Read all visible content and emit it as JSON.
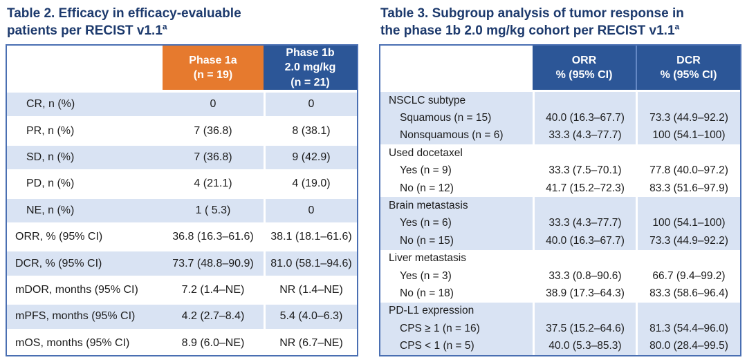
{
  "colors": {
    "title_navy": "#1D3A6D",
    "header_orange": "#E67A2E",
    "header_blue": "#2C5697",
    "row_shade_blue": "#D9E3F3",
    "table_border_blue": "#4A6FB2",
    "body_text": "#1B1B1B"
  },
  "table2": {
    "title_main": "Table 2. Efficacy in efficacy-evaluable\npatients per RECIST v1.1",
    "title_sup": "a",
    "columns": {
      "col1": "",
      "col2": "Phase 1a\n(n = 19)",
      "col3": "Phase 1b\n2.0 mg/kg\n(n = 21)"
    },
    "rows": [
      {
        "label": "CR, n (%)",
        "phase1a": "0",
        "phase1b": "0"
      },
      {
        "label": "PR, n (%)",
        "phase1a": "7 (36.8)",
        "phase1b": "8 (38.1)"
      },
      {
        "label": "SD, n (%)",
        "phase1a": "7 (36.8)",
        "phase1b": "9 (42.9)"
      },
      {
        "label": "PD, n (%)",
        "phase1a": "4 (21.1)",
        "phase1b": "4 (19.0)"
      },
      {
        "label": "NE, n (%)",
        "phase1a": "1 ( 5.3)",
        "phase1b": "0"
      },
      {
        "label": "ORR, % (95% CI)",
        "phase1a": "36.8 (16.3–61.6)",
        "phase1b": "38.1 (18.1–61.6)"
      },
      {
        "label": "DCR, % (95% CI)",
        "phase1a": "73.7 (48.8–90.9)",
        "phase1b": "81.0 (58.1–94.6)"
      },
      {
        "label": "mDOR, months (95% CI)",
        "phase1a": "7.2 (1.4–NE)",
        "phase1b": "NR (1.4–NE)"
      },
      {
        "label": "mPFS, months (95% CI)",
        "phase1a": "4.2 (2.7–8.4)",
        "phase1b": "5.4 (4.0–6.3)"
      },
      {
        "label": "mOS, months (95% CI)",
        "phase1a": "8.9 (6.0–NE)",
        "phase1b": "NR (6.7–NE)"
      }
    ]
  },
  "table3": {
    "title_main": "Table 3. Subgroup analysis of tumor response in\nthe phase 1b 2.0 mg/kg cohort per RECIST v1.1",
    "title_sup": "a",
    "columns": {
      "col1": "",
      "col2": "ORR\n% (95% CI)",
      "col3": "DCR\n% (95% CI)"
    },
    "groups": [
      {
        "header": "NSCLC subtype",
        "rows": [
          {
            "label": "Squamous (n = 15)",
            "orr": "40.0 (16.3–67.7)",
            "dcr": "73.3 (44.9–92.2)"
          },
          {
            "label": "Nonsquamous (n = 6)",
            "orr": "33.3 (4.3–77.7)",
            "dcr": "100 (54.1–100)"
          }
        ]
      },
      {
        "header": "Used docetaxel",
        "rows": [
          {
            "label": "Yes (n = 9)",
            "orr": "33.3 (7.5–70.1)",
            "dcr": "77.8 (40.0–97.2)"
          },
          {
            "label": "No (n = 12)",
            "orr": "41.7 (15.2–72.3)",
            "dcr": "83.3 (51.6–97.9)"
          }
        ]
      },
      {
        "header": "Brain metastasis",
        "rows": [
          {
            "label": "Yes (n = 6)",
            "orr": "33.3 (4.3–77.7)",
            "dcr": "100 (54.1–100)"
          },
          {
            "label": "No (n = 15)",
            "orr": "40.0 (16.3–67.7)",
            "dcr": "73.3 (44.9–92.2)"
          }
        ]
      },
      {
        "header": "Liver metastasis",
        "rows": [
          {
            "label": "Yes (n = 3)",
            "orr": "33.3 (0.8–90.6)",
            "dcr": "66.7 (9.4–99.2)"
          },
          {
            "label": "No (n = 18)",
            "orr": "38.9 (17.3–64.3)",
            "dcr": "83.3 (58.6–96.4)"
          }
        ]
      },
      {
        "header": "PD-L1 expression",
        "rows": [
          {
            "label": "CPS ≥ 1 (n = 16)",
            "orr": "37.5 (15.2–64.6)",
            "dcr": "81.3 (54.4–96.0)"
          },
          {
            "label": "CPS < 1 (n = 5)",
            "orr": "40.0 (5.3–85.3)",
            "dcr": "80.0 (28.4–99.5)"
          }
        ]
      }
    ]
  }
}
